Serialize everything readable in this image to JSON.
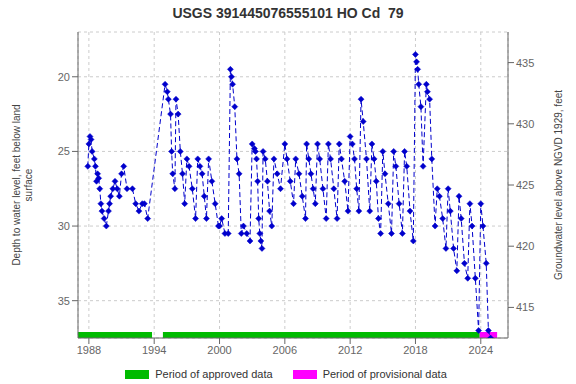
{
  "chart_data": {
    "type": "line",
    "title": "USGS 391445076555101 HO Cd  79",
    "ylabel": "Depth to water level, feet below land\nsurface",
    "y2label": "Groundwater level above NGVD 1929, feet",
    "xlim": [
      1987.0,
      2026.5
    ],
    "xticks": [
      1988,
      1994,
      2000,
      2006,
      2012,
      2018,
      2024
    ],
    "ylim": [
      37.5,
      17.0
    ],
    "yticks": [
      20,
      25,
      30,
      35
    ],
    "y2lim": [
      412.5,
      437.5
    ],
    "y2ticks": [
      415,
      420,
      425,
      430,
      435
    ],
    "grid": true,
    "legend": "bottom",
    "color": "#0000cc",
    "marker": "diamond",
    "line_style": "dashed",
    "x": [
      1987.9,
      1988.0,
      1988.1,
      1988.2,
      1988.3,
      1988.5,
      1988.6,
      1988.7,
      1988.8,
      1988.9,
      1989.0,
      1989.1,
      1989.2,
      1989.4,
      1989.6,
      1989.8,
      1989.9,
      1990.0,
      1990.2,
      1990.4,
      1990.6,
      1990.8,
      1991.0,
      1991.2,
      1991.5,
      1992.0,
      1992.3,
      1992.6,
      1992.9,
      1993.1,
      1993.4,
      1995.0,
      1995.2,
      1995.3,
      1995.5,
      1995.6,
      1995.7,
      1995.9,
      1996.0,
      1996.2,
      1996.4,
      1996.6,
      1996.8,
      1997.0,
      1997.2,
      1997.5,
      1997.8,
      1998.0,
      1998.2,
      1998.4,
      1998.6,
      1998.8,
      1999.0,
      1999.3,
      1999.6,
      1999.9,
      2000.0,
      2000.2,
      2000.5,
      2000.8,
      2001.0,
      2001.1,
      2001.2,
      2001.4,
      2001.6,
      2001.8,
      2002.0,
      2002.2,
      2002.5,
      2002.8,
      2003.0,
      2003.2,
      2003.3,
      2003.4,
      2003.5,
      2003.6,
      2003.7,
      2003.8,
      2003.9,
      2004.0,
      2004.2,
      2004.4,
      2004.6,
      2004.8,
      2005.0,
      2005.3,
      2005.6,
      2006.0,
      2006.2,
      2006.5,
      2006.8,
      2007.0,
      2007.3,
      2007.6,
      2007.9,
      2008.0,
      2008.2,
      2008.4,
      2008.6,
      2008.8,
      2009.0,
      2009.2,
      2009.5,
      2009.8,
      2010.0,
      2010.2,
      2010.5,
      2010.8,
      2011.0,
      2011.2,
      2011.5,
      2011.8,
      2012.0,
      2012.2,
      2012.4,
      2012.6,
      2012.8,
      2013.0,
      2013.2,
      2013.5,
      2013.8,
      2014.0,
      2014.2,
      2014.4,
      2014.6,
      2014.8,
      2015.0,
      2015.2,
      2015.5,
      2015.8,
      2016.0,
      2016.2,
      2016.5,
      2016.8,
      2017.0,
      2017.2,
      2017.5,
      2017.8,
      2018.0,
      2018.1,
      2018.2,
      2018.3,
      2018.5,
      2018.7,
      2019.0,
      2019.1,
      2019.3,
      2019.5,
      2019.8,
      2020.0,
      2020.2,
      2020.5,
      2020.8,
      2021.0,
      2021.2,
      2021.5,
      2021.8,
      2022.0,
      2022.2,
      2022.5,
      2022.8,
      2023.0,
      2023.2,
      2023.5,
      2023.8,
      2024.0,
      2024.2,
      2024.5,
      2024.7,
      2024.9
    ],
    "values": [
      26.0,
      24.5,
      24.0,
      24.2,
      25.0,
      25.5,
      26.0,
      27.0,
      26.5,
      26.8,
      27.5,
      28.5,
      29.0,
      29.5,
      30.0,
      29.0,
      28.5,
      28.0,
      27.5,
      27.0,
      27.5,
      28.0,
      26.5,
      26.0,
      27.5,
      27.5,
      28.5,
      29.0,
      28.5,
      28.5,
      29.5,
      20.5,
      21.0,
      21.5,
      22.5,
      25.0,
      26.5,
      27.5,
      21.5,
      22.5,
      25.0,
      26.5,
      28.5,
      25.5,
      26.0,
      27.5,
      29.5,
      25.5,
      26.0,
      26.5,
      28.0,
      29.5,
      25.5,
      27.0,
      28.5,
      30.0,
      30.0,
      29.5,
      30.5,
      30.5,
      19.5,
      20.0,
      20.5,
      22.0,
      25.5,
      26.5,
      30.5,
      30.0,
      30.5,
      31.0,
      24.5,
      24.8,
      25.0,
      25.5,
      27.0,
      29.5,
      30.5,
      31.0,
      31.5,
      25.0,
      25.5,
      27.0,
      29.0,
      30.0,
      25.5,
      26.5,
      27.5,
      24.5,
      25.5,
      27.0,
      28.5,
      25.5,
      26.5,
      28.0,
      29.5,
      24.5,
      25.5,
      26.5,
      27.5,
      28.5,
      24.5,
      25.5,
      27.5,
      29.5,
      24.5,
      25.5,
      27.5,
      29.5,
      24.5,
      25.5,
      27.0,
      29.0,
      24.0,
      24.5,
      25.5,
      27.5,
      29.0,
      21.5,
      23.0,
      25.5,
      29.0,
      24.5,
      25.5,
      27.0,
      29.5,
      30.5,
      25.0,
      26.5,
      28.5,
      30.5,
      25.0,
      26.0,
      28.5,
      30.5,
      25.0,
      26.0,
      29.0,
      31.0,
      18.5,
      19.0,
      19.5,
      20.5,
      22.0,
      26.0,
      20.5,
      21.0,
      21.5,
      25.5,
      30.0,
      27.5,
      28.0,
      29.5,
      31.5,
      27.5,
      29.0,
      31.5,
      33.0,
      28.0,
      29.5,
      32.5,
      33.5,
      28.5,
      30.0,
      33.5,
      37.0,
      28.5,
      30.0,
      32.5,
      37.0,
      37.5
    ],
    "periods": [
      {
        "name": "Period of approved data",
        "color": "#00bb00",
        "ranges": [
          [
            1987.0,
            1993.8
          ],
          [
            1994.8,
            2023.9
          ]
        ]
      },
      {
        "name": "Period of provisional data",
        "color": "#ff00ff",
        "ranges": [
          [
            2023.9,
            2025.5
          ]
        ]
      }
    ]
  }
}
